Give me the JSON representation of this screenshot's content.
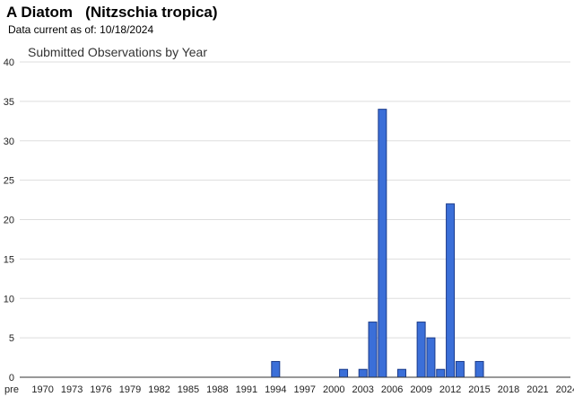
{
  "header": {
    "title": "A Diatom   (Nitzschia tropica)",
    "data_current_label": "Data current as of:",
    "data_current_date": "10/18/2024"
  },
  "chart_data": {
    "type": "bar",
    "title": "Submitted Observations by Year",
    "xlabel": "",
    "ylabel": "",
    "ylim": [
      0,
      40
    ],
    "yticks": [
      0,
      5,
      10,
      15,
      20,
      25,
      30,
      35,
      40
    ],
    "grid": true,
    "bar_color": "#3b6fd8",
    "bar_edge_color": "#1a3a8a",
    "categories": [
      "pre",
      "1969",
      "1970",
      "1971",
      "1972",
      "1973",
      "1974",
      "1975",
      "1976",
      "1977",
      "1978",
      "1979",
      "1980",
      "1981",
      "1982",
      "1983",
      "1984",
      "1985",
      "1986",
      "1987",
      "1988",
      "1989",
      "1990",
      "1991",
      "1992",
      "1993",
      "1994",
      "1995",
      "1996",
      "1997",
      "1998",
      "1999",
      "2000",
      "2001",
      "2002",
      "2003",
      "2004",
      "2005",
      "2006",
      "2007",
      "2008",
      "2009",
      "2010",
      "2011",
      "2012",
      "2013",
      "2014",
      "2015",
      "2016",
      "2017",
      "2018",
      "2019",
      "2020",
      "2021",
      "2022",
      "2023",
      "2024"
    ],
    "tick_labels": [
      "pre",
      "1970",
      "1973",
      "1976",
      "1979",
      "1982",
      "1985",
      "1988",
      "1991",
      "1994",
      "1997",
      "2000",
      "2003",
      "2006",
      "2009",
      "2012",
      "2015",
      "2018",
      "2021",
      "2024"
    ],
    "values": [
      0,
      0,
      0,
      0,
      0,
      0,
      0,
      0,
      0,
      0,
      0,
      0,
      0,
      0,
      0,
      0,
      0,
      0,
      0,
      0,
      0,
      0,
      0,
      0,
      0,
      0,
      2,
      0,
      0,
      0,
      0,
      0,
      0,
      1,
      0,
      1,
      7,
      34,
      0,
      1,
      0,
      7,
      5,
      1,
      22,
      2,
      0,
      2,
      0,
      0,
      0,
      0,
      0,
      0,
      0,
      0,
      0
    ]
  }
}
